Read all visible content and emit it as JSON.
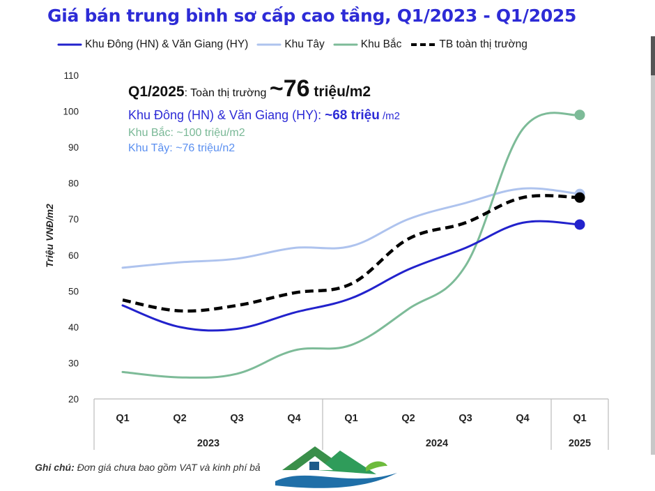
{
  "title": "Giá bán trung bình sơ cấp cao tầng, Q1/2023 - Q1/2025",
  "legend": [
    {
      "name": "Khu Đông (HN) & Văn Giang (HY)",
      "color": "#2222cc",
      "dash": false
    },
    {
      "name": "Khu Tây",
      "color": "#aec3ee",
      "dash": false
    },
    {
      "name": "Khu Bắc",
      "color": "#7dbb98",
      "dash": false
    },
    {
      "name": "TB toàn thị trường",
      "color": "#000000",
      "dash": true
    }
  ],
  "annotation": {
    "main_prefix": "Q1/2025",
    "main_mid": ": Toàn thị trường ",
    "main_value": "~76",
    "main_unit": " triệu/m2",
    "east_label": "Khu Đông (HN) & Văn Giang (HY): ",
    "east_value": "~68 triệu",
    "east_unit": " /m2",
    "north": "Khu Bắc: ~100 triệu/m2",
    "west": "Khu Tây: ~76 triệu/n2"
  },
  "note_label": "Ghi chú:",
  "note_text": " Đơn giá chưa bao gồm VAT và kinh phí bả",
  "colors": {
    "title": "#2d2bd6",
    "east": "#2222cc",
    "west": "#aec3ee",
    "north": "#7dbb98",
    "average": "#000000"
  },
  "chart_data": {
    "type": "line",
    "title": "Giá bán trung bình sơ cấp cao tầng, Q1/2023 - Q1/2025",
    "ylabel": "Triệu VNĐ/m2",
    "xlabel": "",
    "ylim": [
      20,
      110
    ],
    "yticks": [
      20,
      30,
      40,
      50,
      60,
      70,
      80,
      90,
      100,
      110
    ],
    "categories": [
      "Q1",
      "Q2",
      "Q3",
      "Q4",
      "Q1",
      "Q2",
      "Q3",
      "Q4",
      "Q1"
    ],
    "years": [
      {
        "label": "2023",
        "span": [
          0,
          3
        ]
      },
      {
        "label": "2024",
        "span": [
          4,
          7
        ]
      },
      {
        "label": "2025",
        "span": [
          8,
          8
        ]
      }
    ],
    "series": [
      {
        "name": "Khu Đông (HN) & Văn Giang (HY)",
        "values": [
          46,
          40,
          39.5,
          44,
          48,
          56,
          62,
          69,
          68.5
        ]
      },
      {
        "name": "Khu Tây",
        "values": [
          56.5,
          58,
          59,
          62,
          62.5,
          70,
          74.5,
          78.5,
          77
        ]
      },
      {
        "name": "Khu Bắc",
        "values": [
          27.5,
          26,
          27,
          33.5,
          35,
          45,
          57,
          95,
          99
        ]
      },
      {
        "name": "TB toàn thị trường",
        "values": [
          47.5,
          44.5,
          46,
          49.5,
          52,
          64.5,
          69,
          76,
          76
        ]
      }
    ]
  }
}
